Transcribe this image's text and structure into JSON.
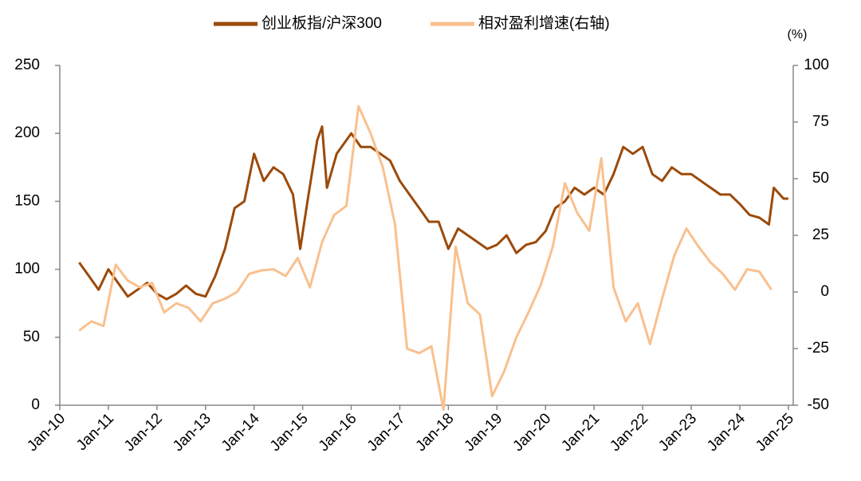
{
  "chart_data": {
    "type": "line",
    "y2_unit": "(%)",
    "xlim": [
      2010,
      2025.1
    ],
    "xticks": [
      {
        "value": 2010,
        "label": "Jan-10"
      },
      {
        "value": 2011,
        "label": "Jan-11"
      },
      {
        "value": 2012,
        "label": "Jan-12"
      },
      {
        "value": 2013,
        "label": "Jan-13"
      },
      {
        "value": 2014,
        "label": "Jan-14"
      },
      {
        "value": 2015,
        "label": "Jan-15"
      },
      {
        "value": 2016,
        "label": "Jan-16"
      },
      {
        "value": 2017,
        "label": "Jan-17"
      },
      {
        "value": 2018,
        "label": "Jan-18"
      },
      {
        "value": 2019,
        "label": "Jan-19"
      },
      {
        "value": 2020,
        "label": "Jan-20"
      },
      {
        "value": 2021,
        "label": "Jan-21"
      },
      {
        "value": 2022,
        "label": "Jan-22"
      },
      {
        "value": 2023,
        "label": "Jan-23"
      },
      {
        "value": 2024,
        "label": "Jan-24"
      },
      {
        "value": 2025,
        "label": "Jan-25"
      }
    ],
    "ylim": [
      0,
      250
    ],
    "yticks": [
      0,
      50,
      100,
      150,
      200,
      250
    ],
    "y2lim": [
      -50,
      100
    ],
    "y2ticks": [
      -50,
      -25,
      0,
      25,
      50,
      75,
      100
    ],
    "legend": "top",
    "series": [
      {
        "name": "创业板指/沪深300",
        "color": "#9c4a0a",
        "width": 3,
        "x": [
          2010.4,
          2010.6,
          2010.8,
          2011.0,
          2011.2,
          2011.4,
          2011.6,
          2011.8,
          2012.0,
          2012.2,
          2012.4,
          2012.6,
          2012.8,
          2013.0,
          2013.2,
          2013.4,
          2013.6,
          2013.8,
          2014.0,
          2014.2,
          2014.4,
          2014.6,
          2014.8,
          2014.95,
          2015.1,
          2015.3,
          2015.4,
          2015.5,
          2015.7,
          2015.9,
          2016.0,
          2016.2,
          2016.4,
          2016.6,
          2016.8,
          2017.0,
          2017.2,
          2017.4,
          2017.6,
          2017.8,
          2018.0,
          2018.2,
          2018.4,
          2018.6,
          2018.8,
          2019.0,
          2019.2,
          2019.4,
          2019.6,
          2019.8,
          2020.0,
          2020.2,
          2020.4,
          2020.6,
          2020.8,
          2021.0,
          2021.2,
          2021.4,
          2021.6,
          2021.8,
          2022.0,
          2022.2,
          2022.4,
          2022.6,
          2022.8,
          2023.0,
          2023.2,
          2023.4,
          2023.6,
          2023.8,
          2024.0,
          2024.2,
          2024.4,
          2024.6,
          2024.7,
          2024.9,
          2025.0
        ],
        "values": [
          105,
          95,
          85,
          100,
          90,
          80,
          85,
          90,
          82,
          78,
          82,
          88,
          82,
          80,
          95,
          115,
          145,
          150,
          185,
          165,
          175,
          170,
          155,
          115,
          150,
          195,
          205,
          160,
          185,
          195,
          200,
          190,
          190,
          185,
          180,
          165,
          155,
          145,
          135,
          135,
          115,
          130,
          125,
          120,
          115,
          118,
          125,
          112,
          118,
          120,
          128,
          145,
          150,
          160,
          155,
          160,
          155,
          170,
          190,
          185,
          190,
          170,
          165,
          175,
          170,
          170,
          165,
          160,
          155,
          155,
          148,
          140,
          138,
          133,
          160,
          152,
          152
        ]
      },
      {
        "name": "相对盈利增速(右轴)",
        "color": "#f9c08e",
        "width": 3,
        "axis": "y2",
        "x": [
          2010.4,
          2010.65,
          2010.9,
          2011.15,
          2011.4,
          2011.65,
          2011.9,
          2012.15,
          2012.4,
          2012.65,
          2012.9,
          2013.15,
          2013.4,
          2013.65,
          2013.9,
          2014.15,
          2014.4,
          2014.65,
          2014.9,
          2015.15,
          2015.4,
          2015.65,
          2015.9,
          2016.15,
          2016.4,
          2016.65,
          2016.9,
          2017.15,
          2017.4,
          2017.65,
          2017.9,
          2018.15,
          2018.4,
          2018.65,
          2018.9,
          2019.15,
          2019.4,
          2019.65,
          2019.9,
          2020.15,
          2020.4,
          2020.65,
          2020.9,
          2021.15,
          2021.4,
          2021.65,
          2021.9,
          2022.15,
          2022.4,
          2022.65,
          2022.9,
          2023.15,
          2023.4,
          2023.65,
          2023.9,
          2024.15,
          2024.4,
          2024.65
        ],
        "values": [
          -17,
          -13,
          -15,
          12,
          5,
          2,
          4,
          -9,
          -5,
          -7,
          -13,
          -5,
          -3,
          0,
          8,
          9.5,
          10,
          7,
          15,
          2,
          22,
          34,
          38,
          82,
          70,
          55,
          30,
          -25,
          -27,
          -24,
          -52,
          20,
          -5,
          -10,
          -46,
          -35,
          -20,
          -9,
          3,
          20,
          48,
          35,
          27,
          59,
          2,
          -13,
          -5,
          -23,
          -3,
          16,
          28,
          20,
          13,
          8,
          1,
          10,
          9,
          1
        ]
      }
    ]
  }
}
